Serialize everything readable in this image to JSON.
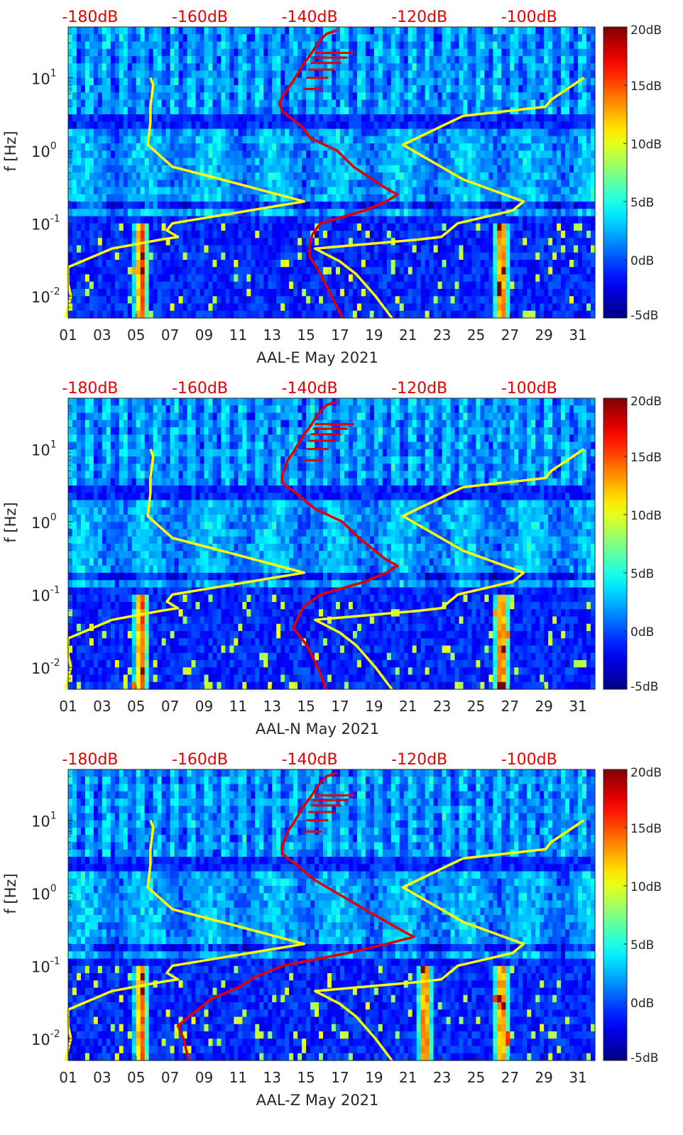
{
  "chart_data": [
    {
      "type": "heatmap",
      "title": "",
      "xlabel": "AAL-E May 2021",
      "ylabel": "f [Hz]",
      "x_ticks": [
        "01",
        "03",
        "05",
        "07",
        "09",
        "11",
        "13",
        "15",
        "17",
        "19",
        "21",
        "23",
        "25",
        "27",
        "29",
        "31"
      ],
      "xlim": [
        1,
        32
      ],
      "ylim": [
        0.005,
        50
      ],
      "y_ticks": [
        {
          "label": "10",
          "exp": "-2",
          "value": 0.01
        },
        {
          "label": "10",
          "exp": "-1",
          "value": 0.1
        },
        {
          "label": "10",
          "exp": "0",
          "value": 1
        },
        {
          "label": "10",
          "exp": "1",
          "value": 10
        }
      ],
      "top_axis_labels": [
        "-180dB",
        "-160dB",
        "-140dB",
        "-120dB",
        "-100dB"
      ],
      "top_axis_range_db": [
        -184,
        -88
      ],
      "colorbar": {
        "labels": [
          "20dB",
          "15dB",
          "10dB",
          "5dB",
          "0dB",
          "-5dB"
        ],
        "range": [
          -5,
          20
        ],
        "colormap": "jet"
      },
      "series": [
        {
          "name": "noise model (low/high)",
          "color": "#ffff00",
          "points_low": [
            [
              0.005,
              -184.5
            ],
            [
              0.01,
              -183.5
            ],
            [
              0.015,
              -184
            ],
            [
              0.025,
              -184
            ],
            [
              0.045,
              -176
            ],
            [
              0.06,
              -167
            ],
            [
              0.065,
              -164
            ],
            [
              0.08,
              -166
            ],
            [
              0.1,
              -165
            ],
            [
              0.2,
              -141
            ],
            [
              0.4,
              -156
            ],
            [
              0.6,
              -165
            ],
            [
              1.2,
              -169.5
            ],
            [
              2.5,
              -169
            ],
            [
              4,
              -169
            ],
            [
              8,
              -168.5
            ],
            [
              10,
              -169
            ]
          ],
          "points_high": [
            [
              0.005,
              -125
            ],
            [
              0.01,
              -128
            ],
            [
              0.02,
              -131.5
            ],
            [
              0.03,
              -134.5
            ],
            [
              0.045,
              -139
            ],
            [
              0.06,
              -120
            ],
            [
              0.065,
              -116
            ],
            [
              0.1,
              -113
            ],
            [
              0.15,
              -103
            ],
            [
              0.2,
              -101
            ],
            [
              0.4,
              -112
            ],
            [
              1.2,
              -123
            ],
            [
              3,
              -112
            ],
            [
              4,
              -97
            ],
            [
              5,
              -96
            ],
            [
              10,
              -90
            ]
          ]
        },
        {
          "name": "median PSD",
          "color": "#e00000",
          "points": [
            [
              0.005,
              -134
            ],
            [
              0.01,
              -136
            ],
            [
              0.02,
              -138
            ],
            [
              0.035,
              -140
            ],
            [
              0.05,
              -140
            ],
            [
              0.07,
              -139.5
            ],
            [
              0.1,
              -138
            ],
            [
              0.15,
              -130
            ],
            [
              0.2,
              -126
            ],
            [
              0.25,
              -124
            ],
            [
              0.3,
              -126
            ],
            [
              0.6,
              -132
            ],
            [
              1,
              -135
            ],
            [
              1.5,
              -140
            ],
            [
              2,
              -141
            ],
            [
              2.5,
              -142.5
            ],
            [
              3,
              -144
            ],
            [
              3.5,
              -145
            ],
            [
              4.5,
              -145.5
            ],
            [
              5.5,
              -145
            ],
            [
              7,
              -144
            ],
            [
              9,
              -143
            ],
            [
              12,
              -142
            ],
            [
              16,
              -141
            ],
            [
              20,
              -140
            ],
            [
              26,
              -139
            ],
            [
              33,
              -138
            ],
            [
              40,
              -137
            ],
            [
              45,
              -135
            ]
          ]
        }
      ]
    },
    {
      "type": "heatmap",
      "title": "",
      "xlabel": "AAL-N May 2021",
      "ylabel": "f [Hz]",
      "x_ticks": [
        "01",
        "03",
        "05",
        "07",
        "09",
        "11",
        "13",
        "15",
        "17",
        "19",
        "21",
        "23",
        "25",
        "27",
        "29",
        "31"
      ],
      "xlim": [
        1,
        32
      ],
      "ylim": [
        0.005,
        50
      ],
      "y_ticks": [
        {
          "label": "10",
          "exp": "-2",
          "value": 0.01
        },
        {
          "label": "10",
          "exp": "-1",
          "value": 0.1
        },
        {
          "label": "10",
          "exp": "0",
          "value": 1
        },
        {
          "label": "10",
          "exp": "1",
          "value": 10
        }
      ],
      "top_axis_labels": [
        "-180dB",
        "-160dB",
        "-140dB",
        "-120dB",
        "-100dB"
      ],
      "top_axis_range_db": [
        -184,
        -88
      ],
      "colorbar": {
        "labels": [
          "20dB",
          "15dB",
          "10dB",
          "5dB",
          "0dB",
          "-5dB"
        ],
        "range": [
          -5,
          20
        ],
        "colormap": "jet"
      },
      "series": [
        {
          "name": "noise model (low/high)",
          "color": "#ffff00",
          "points_low": [
            [
              0.005,
              -184.5
            ],
            [
              0.01,
              -183.5
            ],
            [
              0.015,
              -184
            ],
            [
              0.025,
              -184
            ],
            [
              0.045,
              -176
            ],
            [
              0.06,
              -167
            ],
            [
              0.065,
              -164
            ],
            [
              0.08,
              -166
            ],
            [
              0.1,
              -165
            ],
            [
              0.2,
              -141
            ],
            [
              0.4,
              -156
            ],
            [
              0.6,
              -165
            ],
            [
              1.2,
              -169.5
            ],
            [
              2.5,
              -169
            ],
            [
              4,
              -169
            ],
            [
              8,
              -168.5
            ],
            [
              10,
              -169
            ]
          ],
          "points_high": [
            [
              0.005,
              -125
            ],
            [
              0.01,
              -128
            ],
            [
              0.02,
              -131.5
            ],
            [
              0.03,
              -134.5
            ],
            [
              0.045,
              -139
            ],
            [
              0.06,
              -120
            ],
            [
              0.065,
              -116
            ],
            [
              0.1,
              -113
            ],
            [
              0.15,
              -103
            ],
            [
              0.2,
              -101
            ],
            [
              0.4,
              -112
            ],
            [
              1.2,
              -123
            ],
            [
              3,
              -112
            ],
            [
              4,
              -97
            ],
            [
              5,
              -96
            ],
            [
              10,
              -90
            ]
          ]
        },
        {
          "name": "median PSD",
          "color": "#e00000",
          "points": [
            [
              0.005,
              -137
            ],
            [
              0.01,
              -138.5
            ],
            [
              0.02,
              -140.5
            ],
            [
              0.035,
              -143
            ],
            [
              0.05,
              -142
            ],
            [
              0.07,
              -141
            ],
            [
              0.1,
              -138
            ],
            [
              0.15,
              -130
            ],
            [
              0.2,
              -126
            ],
            [
              0.25,
              -124
            ],
            [
              0.3,
              -126
            ],
            [
              0.6,
              -131
            ],
            [
              1,
              -134
            ],
            [
              1.5,
              -139
            ],
            [
              2,
              -141
            ],
            [
              2.5,
              -142.5
            ],
            [
              3,
              -144
            ],
            [
              3.5,
              -145
            ],
            [
              4.5,
              -145
            ],
            [
              5.5,
              -144.5
            ],
            [
              7,
              -144
            ],
            [
              9,
              -143
            ],
            [
              12,
              -142
            ],
            [
              16,
              -141
            ],
            [
              20,
              -140
            ],
            [
              26,
              -139
            ],
            [
              33,
              -138
            ],
            [
              40,
              -137
            ],
            [
              45,
              -135
            ]
          ]
        }
      ]
    },
    {
      "type": "heatmap",
      "title": "",
      "xlabel": "AAL-Z May 2021",
      "ylabel": "f [Hz]",
      "x_ticks": [
        "01",
        "03",
        "05",
        "07",
        "09",
        "11",
        "13",
        "15",
        "17",
        "19",
        "21",
        "23",
        "25",
        "27",
        "29",
        "31"
      ],
      "xlim": [
        1,
        32
      ],
      "ylim": [
        0.005,
        50
      ],
      "y_ticks": [
        {
          "label": "10",
          "exp": "-2",
          "value": 0.01
        },
        {
          "label": "10",
          "exp": "-1",
          "value": 0.1
        },
        {
          "label": "10",
          "exp": "0",
          "value": 1
        },
        {
          "label": "10",
          "exp": "1",
          "value": 10
        }
      ],
      "top_axis_labels": [
        "-180dB",
        "-160dB",
        "-140dB",
        "-120dB",
        "-100dB"
      ],
      "top_axis_range_db": [
        -184,
        -88
      ],
      "colorbar": {
        "labels": [
          "20dB",
          "15dB",
          "10dB",
          "5dB",
          "0dB",
          "-5dB"
        ],
        "range": [
          -5,
          20
        ],
        "colormap": "jet"
      },
      "series": [
        {
          "name": "noise model (low/high)",
          "color": "#ffff00",
          "points_low": [
            [
              0.005,
              -184.5
            ],
            [
              0.01,
              -183.5
            ],
            [
              0.015,
              -184
            ],
            [
              0.025,
              -184
            ],
            [
              0.045,
              -176
            ],
            [
              0.06,
              -167
            ],
            [
              0.065,
              -164
            ],
            [
              0.08,
              -166
            ],
            [
              0.1,
              -165
            ],
            [
              0.2,
              -141
            ],
            [
              0.4,
              -156
            ],
            [
              0.6,
              -165
            ],
            [
              1.2,
              -169.5
            ],
            [
              2.5,
              -169
            ],
            [
              4,
              -169
            ],
            [
              8,
              -168.5
            ],
            [
              10,
              -169
            ]
          ],
          "points_high": [
            [
              0.005,
              -125
            ],
            [
              0.01,
              -128
            ],
            [
              0.02,
              -131.5
            ],
            [
              0.03,
              -134.5
            ],
            [
              0.045,
              -139
            ],
            [
              0.06,
              -120
            ],
            [
              0.065,
              -116
            ],
            [
              0.1,
              -113
            ],
            [
              0.15,
              -103
            ],
            [
              0.2,
              -101
            ],
            [
              0.4,
              -112
            ],
            [
              1.2,
              -123
            ],
            [
              3,
              -112
            ],
            [
              4,
              -97
            ],
            [
              5,
              -96
            ],
            [
              10,
              -90
            ]
          ]
        },
        {
          "name": "median PSD",
          "color": "#e00000",
          "points": [
            [
              0.005,
              -162
            ],
            [
              0.01,
              -163
            ],
            [
              0.015,
              -164
            ],
            [
              0.02,
              -162
            ],
            [
              0.035,
              -158
            ],
            [
              0.05,
              -153
            ],
            [
              0.07,
              -150
            ],
            [
              0.1,
              -145
            ],
            [
              0.15,
              -133
            ],
            [
              0.2,
              -126
            ],
            [
              0.25,
              -121
            ],
            [
              0.3,
              -123
            ],
            [
              0.6,
              -130
            ],
            [
              1,
              -135
            ],
            [
              1.5,
              -139
            ],
            [
              2,
              -141
            ],
            [
              2.5,
              -142.5
            ],
            [
              3,
              -144
            ],
            [
              3.5,
              -145
            ],
            [
              4.5,
              -145
            ],
            [
              5.5,
              -144.5
            ],
            [
              7,
              -144
            ],
            [
              9,
              -143
            ],
            [
              12,
              -142
            ],
            [
              16,
              -141
            ],
            [
              20,
              -140
            ],
            [
              26,
              -139
            ],
            [
              33,
              -138
            ],
            [
              40,
              -137
            ],
            [
              45,
              -135
            ]
          ]
        }
      ]
    }
  ]
}
